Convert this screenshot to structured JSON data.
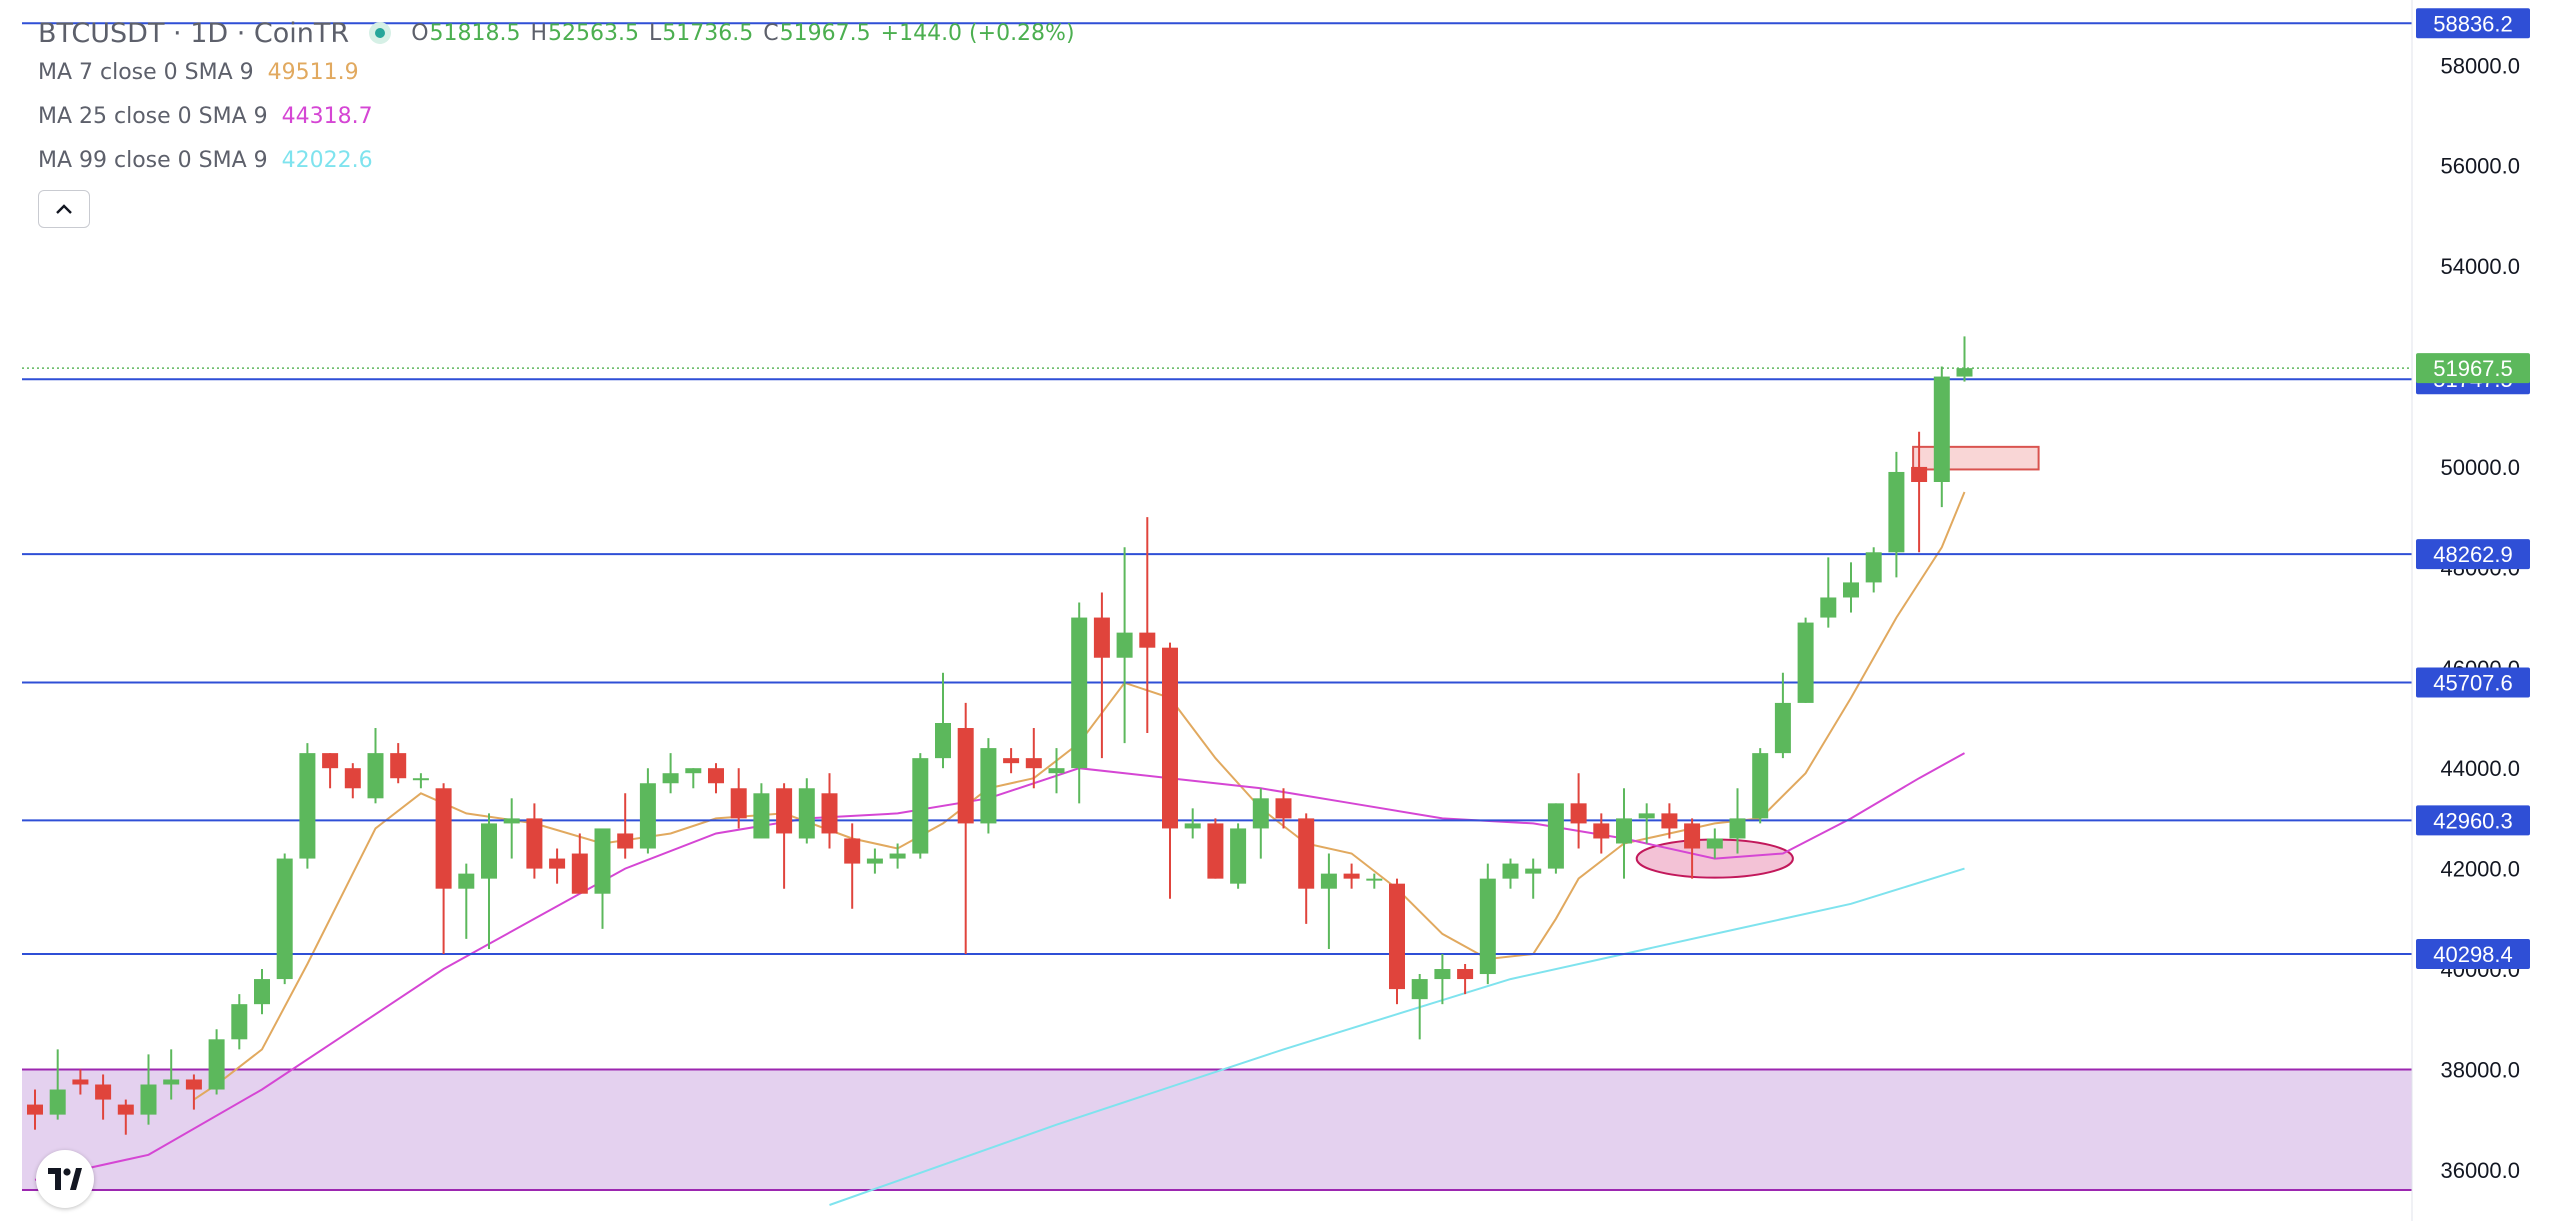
{
  "header": {
    "title": "BTCUSDT · 1D · CoinTR",
    "ohlc": {
      "open_label": "O",
      "open": "51818.5",
      "high_label": "H",
      "high": "52563.5",
      "low_label": "L",
      "low": "51736.5",
      "close_label": "C",
      "close": "51967.5",
      "change": "+144.0 (+0.28%)"
    }
  },
  "indicators": [
    {
      "label": "MA 7 close 0 SMA 9",
      "value": "49511.9",
      "color": "#e1a95f"
    },
    {
      "label": "MA 25 close 0 SMA 9",
      "value": "44318.7",
      "color": "#d546d4"
    },
    {
      "label": "MA 99 close 0 SMA 9",
      "value": "42022.6",
      "color": "#7fe3ee"
    }
  ],
  "controls": {
    "collapse_icon": "chevron-up-icon",
    "logo_icon": "tradingview-logo-icon"
  },
  "colors": {
    "up": "#5cb85c",
    "down": "#e0443c",
    "hline": "#2f4fd6",
    "zone": "#e4d1ef",
    "zone_border": "#9c27b0"
  },
  "chart_data": {
    "type": "candlestick",
    "symbol": "BTCUSDT",
    "interval": "1D",
    "exchange": "CoinTR",
    "ylim": [
      35300,
      59300
    ],
    "y_ticks": [
      "36000.0",
      "38000.0",
      "40000.0",
      "42000.0",
      "44000.0",
      "46000.0",
      "48000.0",
      "50000.0",
      "52000.0",
      "54000.0",
      "56000.0",
      "58000.0"
    ],
    "candles": [
      {
        "o": 37300,
        "h": 37600,
        "l": 36800,
        "c": 37100
      },
      {
        "o": 37100,
        "h": 38400,
        "l": 37000,
        "c": 37600
      },
      {
        "o": 37800,
        "h": 38000,
        "l": 37500,
        "c": 37700
      },
      {
        "o": 37700,
        "h": 37900,
        "l": 37000,
        "c": 37400
      },
      {
        "o": 37300,
        "h": 37400,
        "l": 36700,
        "c": 37100
      },
      {
        "o": 37100,
        "h": 38300,
        "l": 36900,
        "c": 37700
      },
      {
        "o": 37700,
        "h": 38400,
        "l": 37400,
        "c": 37800
      },
      {
        "o": 37800,
        "h": 37900,
        "l": 37200,
        "c": 37600
      },
      {
        "o": 37600,
        "h": 38800,
        "l": 37500,
        "c": 38600
      },
      {
        "o": 38600,
        "h": 39500,
        "l": 38400,
        "c": 39300
      },
      {
        "o": 39300,
        "h": 40000,
        "l": 39100,
        "c": 39800
      },
      {
        "o": 39800,
        "h": 42300,
        "l": 39700,
        "c": 42200
      },
      {
        "o": 42200,
        "h": 44500,
        "l": 42000,
        "c": 44300
      },
      {
        "o": 44300,
        "h": 44300,
        "l": 43600,
        "c": 44000
      },
      {
        "o": 44000,
        "h": 44100,
        "l": 43400,
        "c": 43600
      },
      {
        "o": 43400,
        "h": 44800,
        "l": 43300,
        "c": 44300
      },
      {
        "o": 44300,
        "h": 44500,
        "l": 43700,
        "c": 43800
      },
      {
        "o": 43800,
        "h": 43900,
        "l": 43600,
        "c": 43800
      },
      {
        "o": 43600,
        "h": 43700,
        "l": 40300,
        "c": 41600
      },
      {
        "o": 41600,
        "h": 42100,
        "l": 40600,
        "c": 41900
      },
      {
        "o": 41800,
        "h": 43100,
        "l": 40400,
        "c": 42900
      },
      {
        "o": 42900,
        "h": 43400,
        "l": 42200,
        "c": 43000
      },
      {
        "o": 43000,
        "h": 43300,
        "l": 41800,
        "c": 42000
      },
      {
        "o": 42200,
        "h": 42400,
        "l": 41700,
        "c": 42000
      },
      {
        "o": 42300,
        "h": 42700,
        "l": 41600,
        "c": 41500
      },
      {
        "o": 41500,
        "h": 42700,
        "l": 40800,
        "c": 42800
      },
      {
        "o": 42700,
        "h": 43500,
        "l": 42200,
        "c": 42400
      },
      {
        "o": 42400,
        "h": 44000,
        "l": 42300,
        "c": 43700
      },
      {
        "o": 43700,
        "h": 44300,
        "l": 43500,
        "c": 43900
      },
      {
        "o": 43900,
        "h": 44000,
        "l": 43600,
        "c": 44000
      },
      {
        "o": 44000,
        "h": 44100,
        "l": 43500,
        "c": 43700
      },
      {
        "o": 43600,
        "h": 44000,
        "l": 42800,
        "c": 43000
      },
      {
        "o": 42600,
        "h": 43700,
        "l": 42600,
        "c": 43500
      },
      {
        "o": 43600,
        "h": 43700,
        "l": 41600,
        "c": 42700
      },
      {
        "o": 42600,
        "h": 43800,
        "l": 42500,
        "c": 43600
      },
      {
        "o": 43500,
        "h": 43900,
        "l": 42400,
        "c": 42700
      },
      {
        "o": 42600,
        "h": 42900,
        "l": 41200,
        "c": 42100
      },
      {
        "o": 42100,
        "h": 42400,
        "l": 41900,
        "c": 42200
      },
      {
        "o": 42200,
        "h": 42500,
        "l": 42000,
        "c": 42300
      },
      {
        "o": 42300,
        "h": 44300,
        "l": 42200,
        "c": 44200
      },
      {
        "o": 44200,
        "h": 45900,
        "l": 44000,
        "c": 44900
      },
      {
        "o": 44800,
        "h": 45300,
        "l": 40300,
        "c": 42900
      },
      {
        "o": 42900,
        "h": 44600,
        "l": 42700,
        "c": 44400
      },
      {
        "o": 44200,
        "h": 44400,
        "l": 43900,
        "c": 44100
      },
      {
        "o": 44200,
        "h": 44800,
        "l": 43600,
        "c": 44000
      },
      {
        "o": 43900,
        "h": 44400,
        "l": 43500,
        "c": 44000
      },
      {
        "o": 44000,
        "h": 47300,
        "l": 43300,
        "c": 47000
      },
      {
        "o": 47000,
        "h": 47500,
        "l": 44200,
        "c": 46200
      },
      {
        "o": 46200,
        "h": 48400,
        "l": 44500,
        "c": 46700
      },
      {
        "o": 46700,
        "h": 49000,
        "l": 44700,
        "c": 46400
      },
      {
        "o": 46400,
        "h": 46500,
        "l": 41400,
        "c": 42800
      },
      {
        "o": 42800,
        "h": 43200,
        "l": 42600,
        "c": 42900
      },
      {
        "o": 42900,
        "h": 43000,
        "l": 41800,
        "c": 41800
      },
      {
        "o": 41700,
        "h": 42900,
        "l": 41600,
        "c": 42800
      },
      {
        "o": 42800,
        "h": 43600,
        "l": 42200,
        "c": 43400
      },
      {
        "o": 43400,
        "h": 43600,
        "l": 42800,
        "c": 43000
      },
      {
        "o": 43000,
        "h": 43100,
        "l": 40900,
        "c": 41600
      },
      {
        "o": 41600,
        "h": 42300,
        "l": 40400,
        "c": 41900
      },
      {
        "o": 41900,
        "h": 42100,
        "l": 41600,
        "c": 41800
      },
      {
        "o": 41800,
        "h": 41900,
        "l": 41600,
        "c": 41800
      },
      {
        "o": 41700,
        "h": 41800,
        "l": 39300,
        "c": 39600
      },
      {
        "o": 39400,
        "h": 39900,
        "l": 38600,
        "c": 39800
      },
      {
        "o": 39800,
        "h": 40300,
        "l": 39300,
        "c": 40000
      },
      {
        "o": 40000,
        "h": 40100,
        "l": 39500,
        "c": 39800
      },
      {
        "o": 39900,
        "h": 42100,
        "l": 39700,
        "c": 41800
      },
      {
        "o": 41800,
        "h": 42200,
        "l": 41600,
        "c": 42100
      },
      {
        "o": 41900,
        "h": 42200,
        "l": 41400,
        "c": 42000
      },
      {
        "o": 42000,
        "h": 43300,
        "l": 41900,
        "c": 43300
      },
      {
        "o": 43300,
        "h": 43900,
        "l": 42400,
        "c": 42900
      },
      {
        "o": 42900,
        "h": 43100,
        "l": 42300,
        "c": 42600
      },
      {
        "o": 42500,
        "h": 43600,
        "l": 41800,
        "c": 43000
      },
      {
        "o": 43000,
        "h": 43300,
        "l": 42500,
        "c": 43100
      },
      {
        "o": 43100,
        "h": 43300,
        "l": 42600,
        "c": 42800
      },
      {
        "o": 42900,
        "h": 43000,
        "l": 41800,
        "c": 42400
      },
      {
        "o": 42400,
        "h": 42800,
        "l": 42200,
        "c": 42600
      },
      {
        "o": 42600,
        "h": 43600,
        "l": 42300,
        "c": 43000
      },
      {
        "o": 43000,
        "h": 44400,
        "l": 42900,
        "c": 44300
      },
      {
        "o": 44300,
        "h": 45900,
        "l": 44200,
        "c": 45300
      },
      {
        "o": 45300,
        "h": 47000,
        "l": 45300,
        "c": 46900
      },
      {
        "o": 47000,
        "h": 48200,
        "l": 46800,
        "c": 47400
      },
      {
        "o": 47400,
        "h": 48100,
        "l": 47100,
        "c": 47700
      },
      {
        "o": 47700,
        "h": 48400,
        "l": 47500,
        "c": 48300
      },
      {
        "o": 48300,
        "h": 50300,
        "l": 47800,
        "c": 49900
      },
      {
        "o": 50000,
        "h": 50700,
        "l": 48300,
        "c": 49700
      },
      {
        "o": 49700,
        "h": 52000,
        "l": 49200,
        "c": 51800
      },
      {
        "o": 51800,
        "h": 52600,
        "l": 51700,
        "c": 51967.5
      }
    ],
    "moving_averages": [
      {
        "name": "MA 7",
        "color": "#e1a95f",
        "values": [
          [
            7,
            37400
          ],
          [
            8,
            37700
          ],
          [
            10,
            38400
          ],
          [
            12,
            40100
          ],
          [
            14,
            41900
          ],
          [
            15,
            42800
          ],
          [
            17,
            43500
          ],
          [
            19,
            43100
          ],
          [
            22,
            42900
          ],
          [
            25,
            42500
          ],
          [
            28,
            42700
          ],
          [
            30,
            43000
          ],
          [
            33,
            43100
          ],
          [
            36,
            42600
          ],
          [
            38,
            42400
          ],
          [
            40,
            42900
          ],
          [
            42,
            43600
          ],
          [
            44,
            43800
          ],
          [
            46,
            44500
          ],
          [
            48,
            45700
          ],
          [
            50,
            45400
          ],
          [
            52,
            44200
          ],
          [
            54,
            43200
          ],
          [
            56,
            42500
          ],
          [
            58,
            42300
          ],
          [
            60,
            41600
          ],
          [
            62,
            40700
          ],
          [
            64,
            40200
          ],
          [
            66,
            40300
          ],
          [
            67,
            41000
          ],
          [
            68,
            41800
          ],
          [
            70,
            42500
          ],
          [
            72,
            42700
          ],
          [
            74,
            42900
          ],
          [
            76,
            43000
          ],
          [
            78,
            43900
          ],
          [
            80,
            45400
          ],
          [
            82,
            47000
          ],
          [
            84,
            48400
          ],
          [
            85,
            49500
          ]
        ]
      },
      {
        "name": "MA 25",
        "color": "#d546d4",
        "values": [
          [
            0,
            35800
          ],
          [
            5,
            36300
          ],
          [
            10,
            37600
          ],
          [
            14,
            38800
          ],
          [
            18,
            40000
          ],
          [
            22,
            41000
          ],
          [
            26,
            42000
          ],
          [
            30,
            42700
          ],
          [
            34,
            43000
          ],
          [
            38,
            43100
          ],
          [
            42,
            43400
          ],
          [
            46,
            44000
          ],
          [
            50,
            43800
          ],
          [
            54,
            43600
          ],
          [
            58,
            43300
          ],
          [
            62,
            43000
          ],
          [
            66,
            42900
          ],
          [
            70,
            42600
          ],
          [
            74,
            42200
          ],
          [
            77,
            42300
          ],
          [
            80,
            43000
          ],
          [
            83,
            43800
          ],
          [
            85,
            44300
          ]
        ]
      },
      {
        "name": "MA 99",
        "color": "#7fe3ee",
        "values": [
          [
            35,
            35300
          ],
          [
            45,
            36900
          ],
          [
            55,
            38400
          ],
          [
            60,
            39100
          ],
          [
            65,
            39800
          ],
          [
            70,
            40300
          ],
          [
            75,
            40800
          ],
          [
            80,
            41300
          ],
          [
            85,
            42000
          ]
        ]
      }
    ],
    "horizontal_lines": [
      {
        "price": 58836.2,
        "label": "58836.2"
      },
      {
        "price": 51747.5,
        "label": "51747.5"
      },
      {
        "price": 48262.9,
        "label": "48262.9"
      },
      {
        "price": 45707.6,
        "label": "45707.6"
      },
      {
        "price": 42960.3,
        "label": "42960.3"
      },
      {
        "price": 40298.4,
        "label": "40298.4"
      }
    ],
    "last_price": {
      "price": 51967.5,
      "label": "51967.5"
    },
    "zones": [
      {
        "type": "rectangle",
        "from_price": 35600,
        "to_price": 38000,
        "color": "#e4d1ef"
      },
      {
        "type": "rectangle",
        "from_index": 83,
        "to_index": 88,
        "from_price": 49950,
        "to_price": 50400,
        "color": "#f9d6d6"
      },
      {
        "type": "ellipse",
        "from_index": 71,
        "to_index": 77,
        "from_price": 41900,
        "to_price": 42500,
        "color": "#f3c2d6"
      }
    ]
  }
}
